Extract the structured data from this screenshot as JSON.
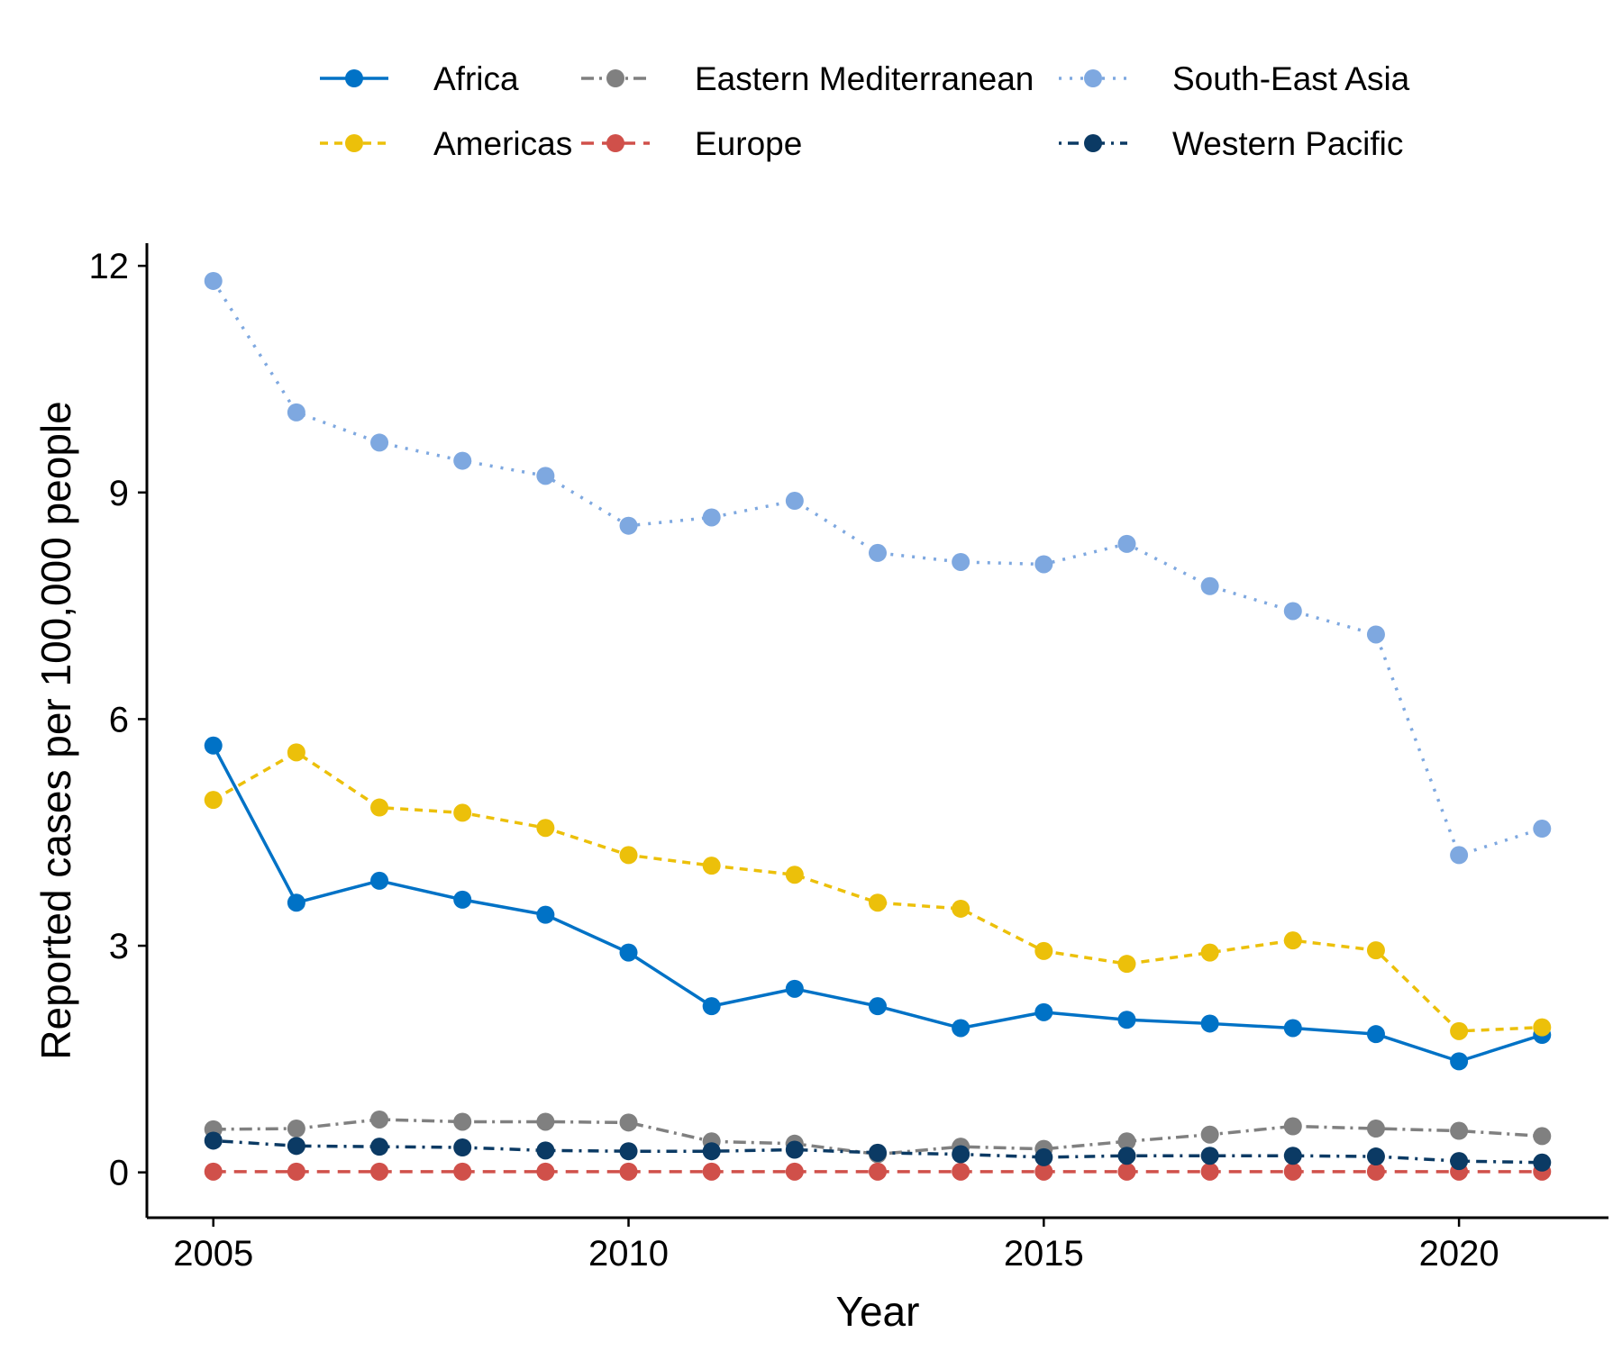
{
  "chart_data": {
    "type": "line",
    "title": "",
    "xlabel": "Year",
    "ylabel": "Reported cases per 100,000 people",
    "xlim": [
      2004.2,
      2021.8
    ],
    "ylim": [
      -0.6,
      12.3
    ],
    "xticks": [
      2005,
      2010,
      2015,
      2020
    ],
    "yticks": [
      0,
      3,
      6,
      9,
      12
    ],
    "grid": false,
    "legend_position": "top",
    "x": [
      2005,
      2006,
      2007,
      2008,
      2009,
      2010,
      2011,
      2012,
      2013,
      2014,
      2015,
      2016,
      2017,
      2018,
      2019,
      2020,
      2021
    ],
    "series": [
      {
        "name": "Africa",
        "color": "#0072c6",
        "dash": "solid",
        "values": [
          5.65,
          3.57,
          3.86,
          3.61,
          3.41,
          2.91,
          2.2,
          2.43,
          2.2,
          1.91,
          2.12,
          2.02,
          1.97,
          1.91,
          1.83,
          1.47,
          1.82
        ]
      },
      {
        "name": "Americas",
        "color": "#ecc00a",
        "dash": "dashed",
        "values": [
          4.93,
          5.56,
          4.83,
          4.76,
          4.56,
          4.2,
          4.06,
          3.94,
          3.57,
          3.49,
          2.93,
          2.76,
          2.91,
          3.07,
          2.94,
          1.87,
          1.92
        ]
      },
      {
        "name": "Eastern Mediterranean",
        "color": "#808080",
        "dash": "longdash",
        "values": [
          0.57,
          0.58,
          0.7,
          0.67,
          0.67,
          0.66,
          0.41,
          0.38,
          0.24,
          0.34,
          0.31,
          0.41,
          0.5,
          0.61,
          0.58,
          0.55,
          0.48
        ]
      },
      {
        "name": "Europe",
        "color": "#d0504a",
        "dash": "dash",
        "values": [
          0.01,
          0.01,
          0.01,
          0.01,
          0.01,
          0.01,
          0.01,
          0.01,
          0.01,
          0.01,
          0.01,
          0.01,
          0.01,
          0.01,
          0.01,
          0.01,
          0.01
        ]
      },
      {
        "name": "South-East Asia",
        "color": "#7ea8e0",
        "dash": "dotted",
        "values": [
          11.8,
          10.06,
          9.66,
          9.42,
          9.22,
          8.56,
          8.67,
          8.89,
          8.2,
          8.08,
          8.05,
          8.32,
          7.76,
          7.43,
          7.12,
          4.2,
          4.55
        ]
      },
      {
        "name": "Western Pacific",
        "color": "#0b3a64",
        "dash": "dotdash",
        "values": [
          0.42,
          0.35,
          0.34,
          0.33,
          0.29,
          0.28,
          0.28,
          0.3,
          0.26,
          0.24,
          0.2,
          0.22,
          0.22,
          0.22,
          0.21,
          0.15,
          0.13
        ]
      }
    ]
  }
}
